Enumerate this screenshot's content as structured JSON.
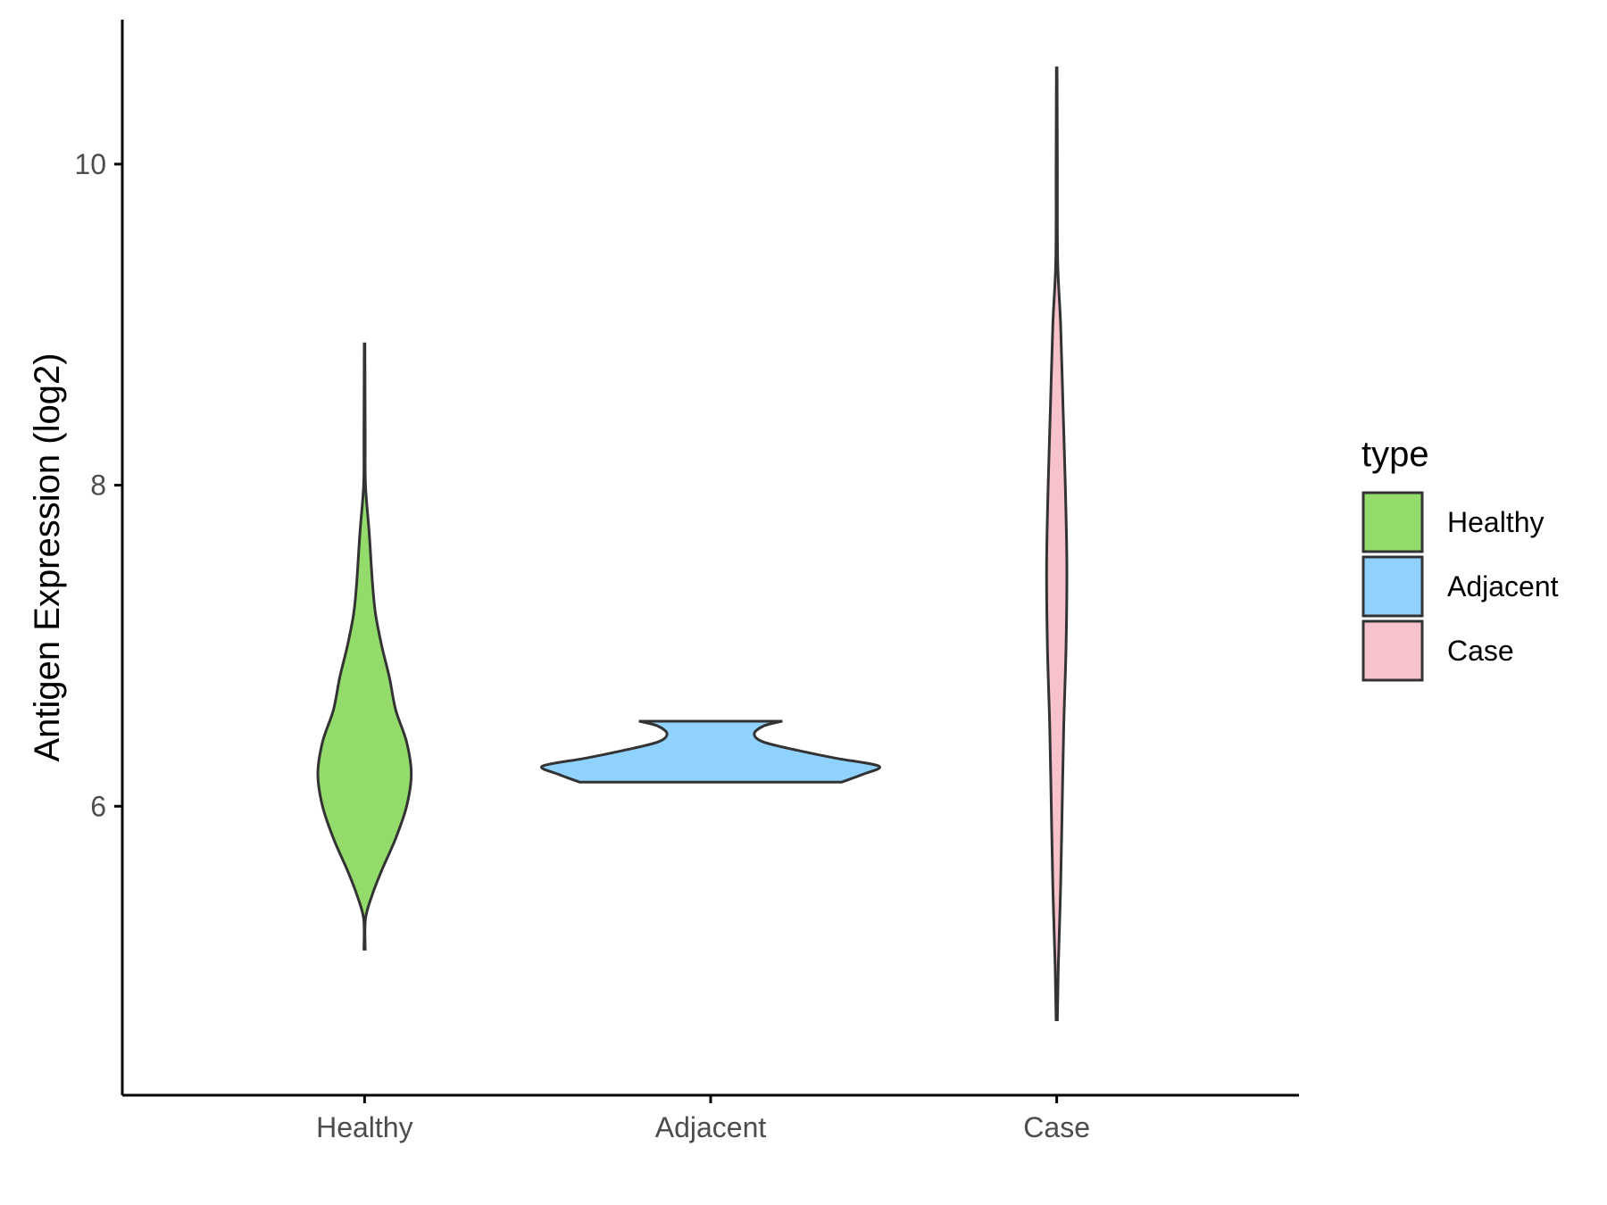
{
  "chart_data": {
    "type": "violin",
    "ylabel": "Antigen Expression (log2)",
    "xlabel": "",
    "categories": [
      "Healthy",
      "Adjacent",
      "Case"
    ],
    "y_ticks": [
      6,
      8,
      10
    ],
    "ylim": [
      4.2,
      10.9
    ],
    "legend": {
      "title": "type",
      "position": "right",
      "items": [
        {
          "label": "Healthy",
          "color": "#93DB6A"
        },
        {
          "label": "Adjacent",
          "color": "#90D2FE"
        },
        {
          "label": "Case",
          "color": "#F7C2CC"
        }
      ]
    },
    "series": [
      {
        "name": "Healthy",
        "color": "#93DB6A",
        "profile": [
          [
            5.11,
            0.004
          ],
          [
            5.3,
            0.006
          ],
          [
            5.45,
            0.05
          ],
          [
            5.6,
            0.11
          ],
          [
            5.8,
            0.2
          ],
          [
            6.0,
            0.27
          ],
          [
            6.2,
            0.3
          ],
          [
            6.4,
            0.27
          ],
          [
            6.6,
            0.2
          ],
          [
            6.8,
            0.16
          ],
          [
            7.0,
            0.11
          ],
          [
            7.2,
            0.07
          ],
          [
            7.4,
            0.05
          ],
          [
            7.7,
            0.03
          ],
          [
            8.0,
            0.006
          ],
          [
            8.3,
            0.004
          ],
          [
            8.88,
            0.002
          ]
        ]
      },
      {
        "name": "Adjacent",
        "color": "#90D2FE",
        "profile": [
          [
            6.15,
            0.84
          ],
          [
            6.2,
            0.98
          ],
          [
            6.25,
            1.08
          ],
          [
            6.3,
            0.8
          ],
          [
            6.35,
            0.55
          ],
          [
            6.4,
            0.34
          ],
          [
            6.45,
            0.28
          ],
          [
            6.5,
            0.34
          ],
          [
            6.53,
            0.46
          ]
        ]
      },
      {
        "name": "Case",
        "color": "#F7C2CC",
        "profile": [
          [
            4.67,
            0.004
          ],
          [
            5.0,
            0.01
          ],
          [
            5.5,
            0.025
          ],
          [
            6.0,
            0.035
          ],
          [
            6.5,
            0.045
          ],
          [
            7.0,
            0.06
          ],
          [
            7.5,
            0.065
          ],
          [
            8.0,
            0.055
          ],
          [
            8.5,
            0.04
          ],
          [
            9.0,
            0.025
          ],
          [
            9.4,
            0.006
          ],
          [
            10.0,
            0.004
          ],
          [
            10.6,
            0.002
          ]
        ]
      }
    ]
  }
}
